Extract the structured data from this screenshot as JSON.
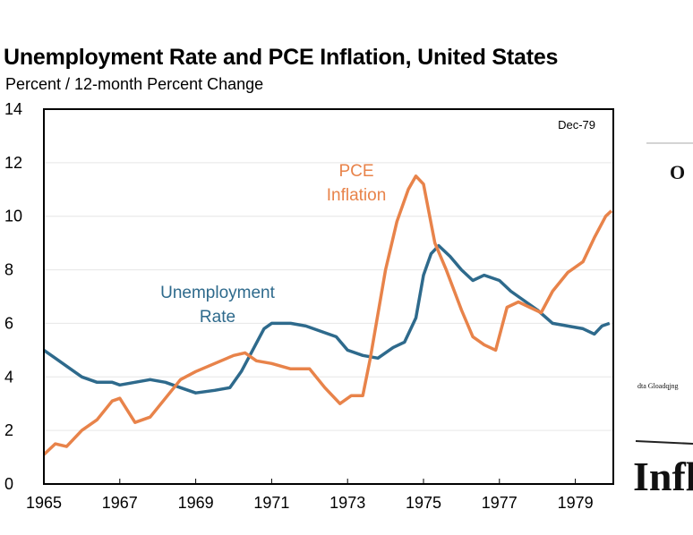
{
  "chart_data": {
    "type": "line",
    "title": "Unemployment Rate and PCE Inflation, United States",
    "subtitle": "Percent / 12-month Percent Change",
    "annotation": "Dec-79",
    "xlim": [
      1965,
      1980
    ],
    "ylim": [
      0,
      14
    ],
    "x_ticks": [
      "1965",
      "1967",
      "1969",
      "1971",
      "1973",
      "1975",
      "1977",
      "1979"
    ],
    "y_ticks": [
      "0",
      "2",
      "4",
      "6",
      "8",
      "10",
      "12",
      "14"
    ],
    "grid": true,
    "series": [
      {
        "name": "Unemployment Rate",
        "label_lines": [
          "Unemployment",
          "Rate"
        ],
        "color": "#2e6a8c",
        "points": [
          [
            1965.0,
            5.0
          ],
          [
            1965.3,
            4.7
          ],
          [
            1965.6,
            4.4
          ],
          [
            1966.0,
            4.0
          ],
          [
            1966.4,
            3.8
          ],
          [
            1966.8,
            3.8
          ],
          [
            1967.0,
            3.7
          ],
          [
            1967.4,
            3.8
          ],
          [
            1967.8,
            3.9
          ],
          [
            1968.2,
            3.8
          ],
          [
            1968.6,
            3.6
          ],
          [
            1969.0,
            3.4
          ],
          [
            1969.5,
            3.5
          ],
          [
            1969.9,
            3.6
          ],
          [
            1970.2,
            4.2
          ],
          [
            1970.5,
            5.0
          ],
          [
            1970.8,
            5.8
          ],
          [
            1971.0,
            6.0
          ],
          [
            1971.5,
            6.0
          ],
          [
            1971.9,
            5.9
          ],
          [
            1972.3,
            5.7
          ],
          [
            1972.7,
            5.5
          ],
          [
            1973.0,
            5.0
          ],
          [
            1973.4,
            4.8
          ],
          [
            1973.8,
            4.7
          ],
          [
            1974.2,
            5.1
          ],
          [
            1974.5,
            5.3
          ],
          [
            1974.8,
            6.2
          ],
          [
            1975.0,
            7.8
          ],
          [
            1975.2,
            8.6
          ],
          [
            1975.4,
            8.9
          ],
          [
            1975.7,
            8.5
          ],
          [
            1976.0,
            8.0
          ],
          [
            1976.3,
            7.6
          ],
          [
            1976.6,
            7.8
          ],
          [
            1977.0,
            7.6
          ],
          [
            1977.3,
            7.2
          ],
          [
            1977.6,
            6.9
          ],
          [
            1978.0,
            6.5
          ],
          [
            1978.4,
            6.0
          ],
          [
            1978.8,
            5.9
          ],
          [
            1979.2,
            5.8
          ],
          [
            1979.5,
            5.6
          ],
          [
            1979.7,
            5.9
          ],
          [
            1979.9,
            6.0
          ]
        ]
      },
      {
        "name": "PCE Inflation",
        "label_lines": [
          "PCE",
          "Inflation"
        ],
        "color": "#e8834a",
        "points": [
          [
            1965.0,
            1.1
          ],
          [
            1965.3,
            1.5
          ],
          [
            1965.6,
            1.4
          ],
          [
            1966.0,
            2.0
          ],
          [
            1966.4,
            2.4
          ],
          [
            1966.8,
            3.1
          ],
          [
            1967.0,
            3.2
          ],
          [
            1967.4,
            2.3
          ],
          [
            1967.8,
            2.5
          ],
          [
            1968.2,
            3.2
          ],
          [
            1968.6,
            3.9
          ],
          [
            1969.0,
            4.2
          ],
          [
            1969.5,
            4.5
          ],
          [
            1970.0,
            4.8
          ],
          [
            1970.3,
            4.9
          ],
          [
            1970.6,
            4.6
          ],
          [
            1971.0,
            4.5
          ],
          [
            1971.5,
            4.3
          ],
          [
            1972.0,
            4.3
          ],
          [
            1972.4,
            3.6
          ],
          [
            1972.8,
            3.0
          ],
          [
            1973.1,
            3.3
          ],
          [
            1973.4,
            3.3
          ],
          [
            1973.6,
            4.7
          ],
          [
            1974.0,
            8.0
          ],
          [
            1974.3,
            9.8
          ],
          [
            1974.6,
            11.0
          ],
          [
            1974.8,
            11.5
          ],
          [
            1975.0,
            11.2
          ],
          [
            1975.3,
            9.0
          ],
          [
            1975.6,
            8.0
          ],
          [
            1976.0,
            6.5
          ],
          [
            1976.3,
            5.5
          ],
          [
            1976.6,
            5.2
          ],
          [
            1976.9,
            5.0
          ],
          [
            1977.2,
            6.6
          ],
          [
            1977.5,
            6.8
          ],
          [
            1977.8,
            6.6
          ],
          [
            1978.1,
            6.4
          ],
          [
            1978.4,
            7.2
          ],
          [
            1978.8,
            7.9
          ],
          [
            1979.2,
            8.3
          ],
          [
            1979.5,
            9.2
          ],
          [
            1979.8,
            10.0
          ],
          [
            1979.95,
            10.2
          ]
        ]
      }
    ]
  }
}
